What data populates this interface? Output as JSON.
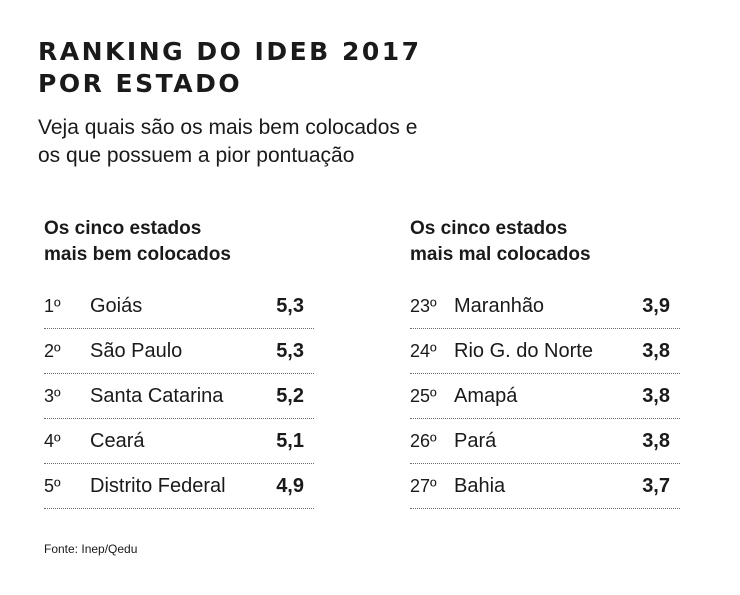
{
  "title_lines": [
    "RANKING DO IDEB 2017",
    "POR ESTADO"
  ],
  "subtitle_lines": [
    "Veja quais são os mais bem colocados e",
    "os que possuem a pior pontuação"
  ],
  "source": "Fonte: Inep/Qedu",
  "chart_data": [
    {
      "type": "table",
      "heading_lines": [
        "Os cinco estados",
        "mais bem colocados"
      ],
      "rows": [
        {
          "rank": "1º",
          "state": "Goiás",
          "score": "5,3"
        },
        {
          "rank": "2º",
          "state": "São Paulo",
          "score": "5,3"
        },
        {
          "rank": "3º",
          "state": "Santa Catarina",
          "score": "5,2"
        },
        {
          "rank": "4º",
          "state": "Ceará",
          "score": "5,1"
        },
        {
          "rank": "5º",
          "state": "Distrito Federal",
          "score": "4,9"
        }
      ]
    },
    {
      "type": "table",
      "heading_lines": [
        "Os cinco estados",
        "mais mal colocados"
      ],
      "rows": [
        {
          "rank": "23º",
          "state": "Maranhão",
          "score": "3,9"
        },
        {
          "rank": "24º",
          "state": "Rio G. do Norte",
          "score": "3,8"
        },
        {
          "rank": "25º",
          "state": "Amapá",
          "score": "3,8"
        },
        {
          "rank": "26º",
          "state": "Pará",
          "score": "3,8"
        },
        {
          "rank": "27º",
          "state": "Bahia",
          "score": "3,7"
        }
      ]
    }
  ]
}
